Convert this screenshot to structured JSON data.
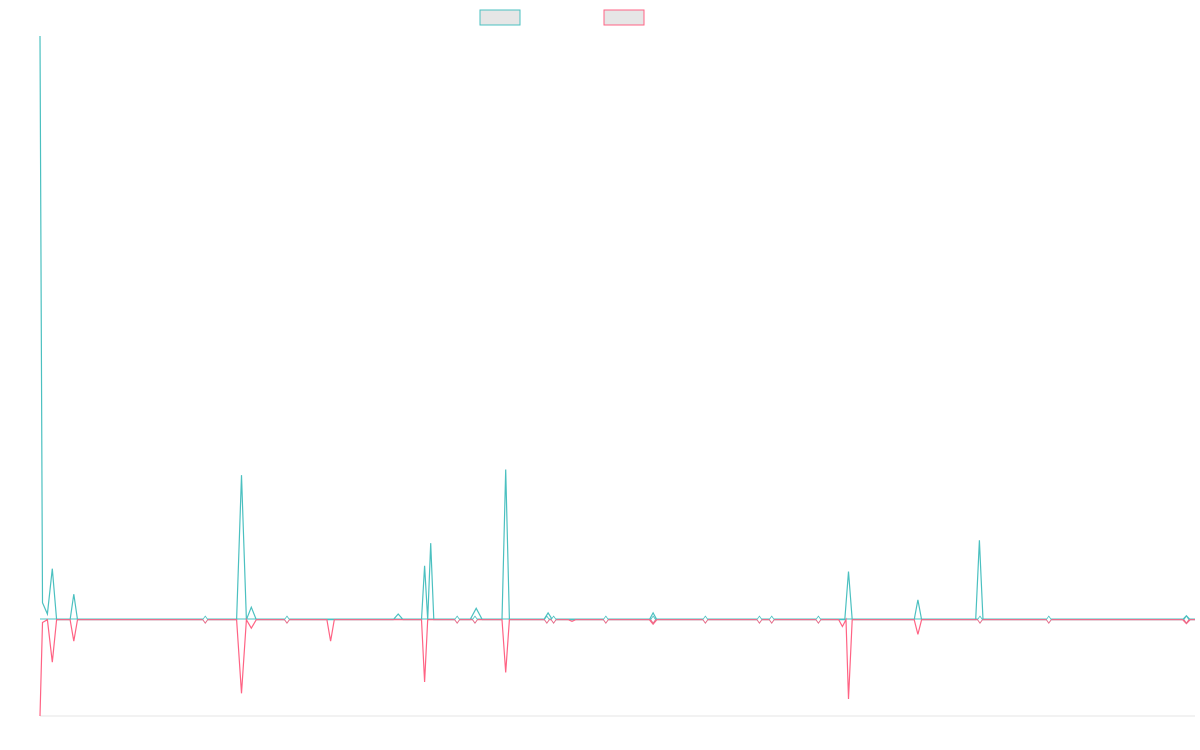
{
  "chart_data": {
    "type": "line",
    "x_range": [
      0,
      188
    ],
    "ylim": [
      -17,
      103
    ],
    "grid": false,
    "legend_position": "top-center",
    "series": [
      {
        "color": "#4bc0c0",
        "fill": "#e6e6e6",
        "points": [
          [
            0,
            103
          ],
          [
            0.4,
            3
          ],
          [
            1.2,
            1
          ],
          [
            2,
            9
          ],
          [
            2.7,
            0
          ],
          [
            4.9,
            0
          ],
          [
            5.5,
            4.5
          ],
          [
            6.1,
            0
          ],
          [
            32,
            0
          ],
          [
            32.8,
            25.5
          ],
          [
            33.6,
            0
          ],
          [
            34.4,
            2.2
          ],
          [
            35.2,
            0
          ],
          [
            57.5,
            0
          ],
          [
            58.3,
            1
          ],
          [
            59.1,
            0
          ],
          [
            62.1,
            0
          ],
          [
            62.6,
            9.5
          ],
          [
            63.1,
            0
          ],
          [
            63.6,
            13.5
          ],
          [
            64.1,
            0
          ],
          [
            70,
            0
          ],
          [
            71,
            2
          ],
          [
            72,
            0
          ],
          [
            75.2,
            0
          ],
          [
            75.8,
            26.5
          ],
          [
            76.4,
            0
          ],
          [
            82,
            0
          ],
          [
            82.7,
            1.2
          ],
          [
            83.4,
            0
          ],
          [
            99.2,
            0
          ],
          [
            99.8,
            1.2
          ],
          [
            100.4,
            0
          ],
          [
            131,
            0
          ],
          [
            131.6,
            8.5
          ],
          [
            132.2,
            0
          ],
          [
            142.3,
            0
          ],
          [
            142.9,
            3.5
          ],
          [
            143.5,
            0
          ],
          [
            152.3,
            0
          ],
          [
            152.9,
            14
          ],
          [
            153.5,
            0
          ],
          [
            186,
            0
          ],
          [
            186.6,
            0.7
          ],
          [
            187.2,
            0
          ],
          [
            188,
            0
          ]
        ]
      },
      {
        "color": "#ff6384",
        "fill": "#e6e6e6",
        "points": [
          [
            0,
            -17
          ],
          [
            0.4,
            -0.5
          ],
          [
            1.2,
            0
          ],
          [
            2,
            -7.5
          ],
          [
            2.7,
            0
          ],
          [
            4.9,
            0
          ],
          [
            5.5,
            -3.8
          ],
          [
            6.1,
            0
          ],
          [
            32,
            0
          ],
          [
            32.8,
            -13
          ],
          [
            33.6,
            0
          ],
          [
            34.4,
            -1.5
          ],
          [
            35.2,
            0
          ],
          [
            46.7,
            0
          ],
          [
            47.3,
            -3.8
          ],
          [
            47.9,
            0
          ],
          [
            62.1,
            0
          ],
          [
            62.6,
            -11
          ],
          [
            63.1,
            0
          ],
          [
            75.2,
            0
          ],
          [
            75.8,
            -9.3
          ],
          [
            76.4,
            0
          ],
          [
            86,
            0
          ],
          [
            86.6,
            -0.3
          ],
          [
            87.2,
            0
          ],
          [
            99.2,
            0
          ],
          [
            99.8,
            -0.8
          ],
          [
            100.4,
            0
          ],
          [
            130,
            0
          ],
          [
            130.6,
            -1.2
          ],
          [
            131.2,
            0
          ],
          [
            131.6,
            -14
          ],
          [
            132.2,
            0
          ],
          [
            142.3,
            0
          ],
          [
            142.9,
            -2.6
          ],
          [
            143.5,
            0
          ],
          [
            186,
            0
          ],
          [
            186.6,
            -0.7
          ],
          [
            187.2,
            0
          ],
          [
            188,
            0
          ]
        ]
      }
    ],
    "markers": [
      26.9,
      40.2,
      67.9,
      70.8,
      82.5,
      83.6,
      92.1,
      99.8,
      108.3,
      117.1,
      119.1,
      126.7,
      153,
      164.2,
      186.6
    ]
  }
}
